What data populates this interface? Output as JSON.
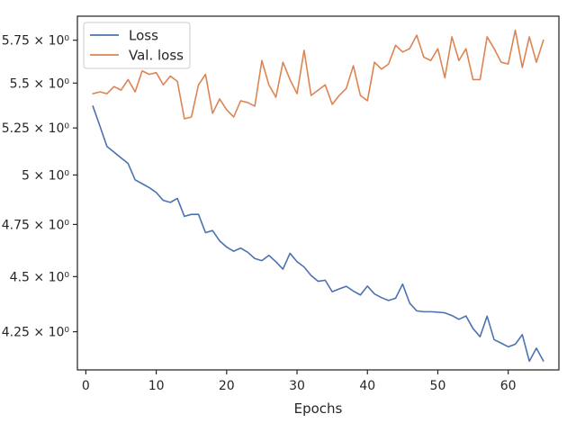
{
  "chart_data": {
    "type": "line",
    "xlabel": "Epochs",
    "ylabel": "",
    "title": "",
    "x_scale": "linear",
    "y_scale": "log",
    "xlim": [
      -1.2,
      67.2
    ],
    "ylim": [
      4.085,
      5.895
    ],
    "x_ticks": [
      0,
      10,
      20,
      30,
      40,
      50,
      60
    ],
    "y_ticks": [
      {
        "value": 4.25,
        "label": "4.25 × 10⁰"
      },
      {
        "value": 4.5,
        "label": "4.5 × 10⁰"
      },
      {
        "value": 4.75,
        "label": "4.75 × 10⁰"
      },
      {
        "value": 5.0,
        "label": "5 × 10⁰"
      },
      {
        "value": 5.25,
        "label": "5.25 × 10⁰"
      },
      {
        "value": 5.5,
        "label": "5.5 × 10⁰"
      },
      {
        "value": 5.75,
        "label": "5.75 × 10⁰"
      }
    ],
    "grid": false,
    "legend_position": "top-left",
    "x": [
      1,
      2,
      3,
      4,
      5,
      6,
      7,
      8,
      9,
      10,
      11,
      12,
      13,
      14,
      15,
      16,
      17,
      18,
      19,
      20,
      21,
      22,
      23,
      24,
      25,
      26,
      27,
      28,
      29,
      30,
      31,
      32,
      33,
      34,
      35,
      36,
      37,
      38,
      39,
      40,
      41,
      42,
      43,
      44,
      45,
      46,
      47,
      48,
      49,
      50,
      51,
      52,
      53,
      54,
      55,
      56,
      57,
      58,
      59,
      60,
      61,
      62,
      63,
      64,
      65
    ],
    "series": [
      {
        "name": "Loss",
        "color": "#4c72b0",
        "values": [
          5.37,
          5.26,
          5.15,
          5.12,
          5.09,
          5.06,
          4.975,
          4.955,
          4.935,
          4.91,
          4.87,
          4.86,
          4.88,
          4.79,
          4.8,
          4.8,
          4.71,
          4.72,
          4.67,
          4.64,
          4.62,
          4.635,
          4.615,
          4.585,
          4.575,
          4.6,
          4.57,
          4.535,
          4.61,
          4.57,
          4.545,
          4.505,
          4.478,
          4.483,
          4.43,
          4.443,
          4.455,
          4.433,
          4.415,
          4.456,
          4.42,
          4.403,
          4.39,
          4.4,
          4.465,
          4.378,
          4.343,
          4.339,
          4.339,
          4.337,
          4.334,
          4.322,
          4.305,
          4.32,
          4.264,
          4.228,
          4.319,
          4.215,
          4.2,
          4.184,
          4.195,
          4.237,
          4.122,
          4.178,
          4.123
        ]
      },
      {
        "name": "Val. loss",
        "color": "#dd8452",
        "values": [
          5.44,
          5.45,
          5.44,
          5.48,
          5.46,
          5.52,
          5.45,
          5.57,
          5.55,
          5.56,
          5.49,
          5.54,
          5.51,
          5.3,
          5.31,
          5.49,
          5.55,
          5.33,
          5.41,
          5.35,
          5.31,
          5.4,
          5.39,
          5.37,
          5.63,
          5.49,
          5.42,
          5.62,
          5.52,
          5.44,
          5.69,
          5.43,
          5.46,
          5.49,
          5.38,
          5.43,
          5.47,
          5.6,
          5.43,
          5.4,
          5.62,
          5.58,
          5.61,
          5.72,
          5.68,
          5.7,
          5.78,
          5.65,
          5.63,
          5.7,
          5.53,
          5.77,
          5.63,
          5.7,
          5.52,
          5.52,
          5.77,
          5.7,
          5.62,
          5.61,
          5.81,
          5.59,
          5.77,
          5.62,
          5.75
        ]
      }
    ]
  }
}
